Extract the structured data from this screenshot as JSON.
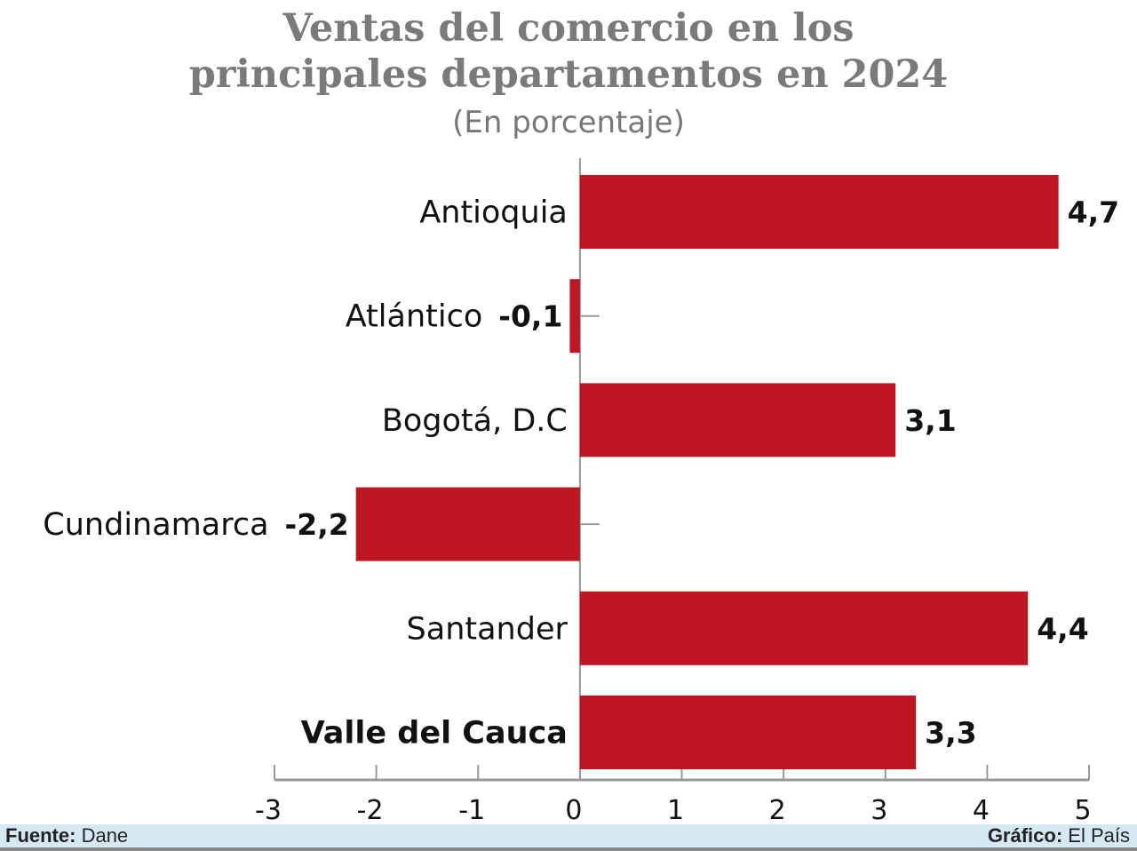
{
  "chart_data": {
    "type": "bar",
    "orientation": "horizontal",
    "title": "Ventas del comercio en los principales departamentos en 2024",
    "title_lines": [
      "Ventas del comercio en los",
      "principales departamentos en 2024"
    ],
    "subtitle": "(En porcentaje)",
    "categories": [
      "Antioquia",
      "Atlántico",
      "Bogotá, D.C",
      "Cundinamarca",
      "Santander",
      "Valle del Cauca"
    ],
    "values": [
      4.7,
      -0.1,
      3.1,
      -2.2,
      4.4,
      3.3
    ],
    "data_labels": [
      "4,7",
      "-0,1",
      "3,1",
      "-2,2",
      "4,4",
      "3,3"
    ],
    "xlim": [
      -3,
      5
    ],
    "xticks": [
      "-3",
      "-2",
      "-1",
      "0",
      "1",
      "2",
      "3",
      "4",
      "5"
    ],
    "grid": false,
    "bar_color": "#be1622"
  },
  "footer": {
    "source_label": "Fuente:",
    "source": "Dane",
    "credit_label": "Gráfico:",
    "credit": "El País"
  }
}
